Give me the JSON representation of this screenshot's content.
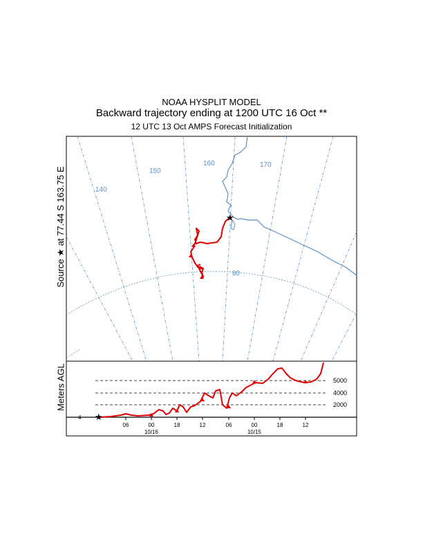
{
  "titles": {
    "line1": "NOAA HYSPLIT MODEL",
    "line2": "Backward trajectory ending at 1200 UTC 16 Oct **",
    "line3": "12 UTC 13 Oct    AMPS  Forecast Initialization"
  },
  "source_label": "Source ★ at  77.44 S  163.75 E",
  "agl_label": "Meters AGL",
  "colors": {
    "trajectory": "#e00000",
    "map_lines": "#5a8fc0",
    "grid": "#000000"
  },
  "chart_data": [
    {
      "type": "map",
      "longitude_labels": [
        "140",
        "150",
        "160",
        "170"
      ],
      "latitude_labels": [
        "80"
      ],
      "source": {
        "lat": -77.44,
        "lon": 163.75,
        "marker": "star"
      },
      "trajectory_marker": "triangle"
    },
    {
      "type": "line",
      "ylabel": "Meters AGL",
      "y_tick_labels": [
        "2000",
        "4000",
        "5000"
      ],
      "x_tick_labels": [
        "06",
        "00",
        "18",
        "12",
        "06",
        "00",
        "18",
        "12"
      ],
      "date_labels": [
        "10/16",
        "10/15"
      ]
    }
  ]
}
